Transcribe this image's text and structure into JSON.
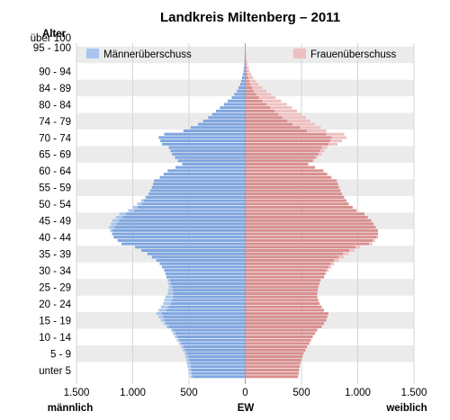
{
  "chart_data": {
    "type": "bar",
    "orientation": "horizontal-mirrored",
    "title": "Landkreis Miltenberg – 2011",
    "y_axis_label": "Alter",
    "x_axis_center_label": "EW",
    "x_axis_left_label": "männlich",
    "x_axis_right_label": "weiblich",
    "xlim": [
      -1500,
      1500
    ],
    "x_tick_labels": [
      "1.500",
      "1.000",
      "500",
      "0",
      "500",
      "1.000",
      "1.500"
    ],
    "x_tick_values": [
      -1500,
      -1000,
      -500,
      0,
      500,
      1000,
      1500
    ],
    "age_tick_labels": [
      "unter 5",
      "5 - 9",
      "10 - 14",
      "15 - 19",
      "20 - 24",
      "25 - 29",
      "30 - 34",
      "35 - 39",
      "40 - 44",
      "45 - 49",
      "50 - 54",
      "55 - 59",
      "60 - 64",
      "65 - 69",
      "70 - 74",
      "74 - 79",
      "80 - 84",
      "84 - 89",
      "90 - 94",
      "95 - 100",
      "über 100"
    ],
    "legend": [
      {
        "label": "Männerüberschuss",
        "color": "#a9c5ee",
        "position": "top-left"
      },
      {
        "label": "Frauenüberschuss",
        "color": "#efc0c0",
        "position": "top-right"
      }
    ],
    "colors": {
      "male": "#7fa6e0",
      "female": "#d98f8f",
      "male_excess": "#a9c5ee",
      "female_excess": "#efc0c0",
      "band": "#ebebeb"
    },
    "age_range": [
      0,
      100
    ],
    "male_anchors_by_age": [
      [
        0,
        490
      ],
      [
        2,
        505
      ],
      [
        4,
        520
      ],
      [
        5,
        525
      ],
      [
        7,
        540
      ],
      [
        9,
        570
      ],
      [
        10,
        590
      ],
      [
        12,
        625
      ],
      [
        14,
        660
      ],
      [
        15,
        700
      ],
      [
        17,
        750
      ],
      [
        19,
        790
      ],
      [
        20,
        770
      ],
      [
        22,
        730
      ],
      [
        24,
        710
      ],
      [
        25,
        690
      ],
      [
        27,
        680
      ],
      [
        29,
        690
      ],
      [
        30,
        700
      ],
      [
        32,
        720
      ],
      [
        34,
        760
      ],
      [
        35,
        790
      ],
      [
        37,
        870
      ],
      [
        39,
        980
      ],
      [
        40,
        1100
      ],
      [
        42,
        1170
      ],
      [
        44,
        1200
      ],
      [
        45,
        1210
      ],
      [
        47,
        1180
      ],
      [
        49,
        1120
      ],
      [
        50,
        1040
      ],
      [
        52,
        960
      ],
      [
        54,
        890
      ],
      [
        55,
        860
      ],
      [
        57,
        830
      ],
      [
        59,
        810
      ],
      [
        60,
        760
      ],
      [
        62,
        690
      ],
      [
        63,
        620
      ],
      [
        64,
        560
      ],
      [
        65,
        600
      ],
      [
        67,
        650
      ],
      [
        69,
        680
      ],
      [
        70,
        740
      ],
      [
        72,
        770
      ],
      [
        73,
        720
      ],
      [
        74,
        550
      ],
      [
        76,
        420
      ],
      [
        78,
        330
      ],
      [
        80,
        260
      ],
      [
        82,
        190
      ],
      [
        84,
        120
      ],
      [
        86,
        75
      ],
      [
        88,
        45
      ],
      [
        90,
        28
      ],
      [
        92,
        16
      ],
      [
        94,
        9
      ],
      [
        96,
        5
      ],
      [
        98,
        2
      ],
      [
        100,
        1
      ]
    ],
    "female_anchors_by_age": [
      [
        0,
        470
      ],
      [
        2,
        480
      ],
      [
        4,
        490
      ],
      [
        5,
        500
      ],
      [
        7,
        520
      ],
      [
        9,
        550
      ],
      [
        10,
        570
      ],
      [
        12,
        600
      ],
      [
        14,
        640
      ],
      [
        15,
        680
      ],
      [
        17,
        720
      ],
      [
        19,
        740
      ],
      [
        20,
        700
      ],
      [
        22,
        660
      ],
      [
        24,
        640
      ],
      [
        25,
        640
      ],
      [
        27,
        650
      ],
      [
        29,
        670
      ],
      [
        30,
        700
      ],
      [
        32,
        740
      ],
      [
        34,
        790
      ],
      [
        35,
        830
      ],
      [
        37,
        920
      ],
      [
        39,
        1020
      ],
      [
        40,
        1130
      ],
      [
        42,
        1180
      ],
      [
        44,
        1180
      ],
      [
        45,
        1160
      ],
      [
        47,
        1120
      ],
      [
        49,
        1060
      ],
      [
        50,
        990
      ],
      [
        52,
        920
      ],
      [
        54,
        880
      ],
      [
        55,
        860
      ],
      [
        57,
        840
      ],
      [
        59,
        820
      ],
      [
        60,
        770
      ],
      [
        62,
        700
      ],
      [
        63,
        620
      ],
      [
        64,
        560
      ],
      [
        65,
        610
      ],
      [
        67,
        680
      ],
      [
        69,
        730
      ],
      [
        70,
        820
      ],
      [
        72,
        900
      ],
      [
        73,
        880
      ],
      [
        74,
        720
      ],
      [
        76,
        620
      ],
      [
        78,
        540
      ],
      [
        80,
        460
      ],
      [
        82,
        370
      ],
      [
        84,
        270
      ],
      [
        86,
        190
      ],
      [
        88,
        120
      ],
      [
        90,
        70
      ],
      [
        92,
        40
      ],
      [
        94,
        22
      ],
      [
        96,
        12
      ],
      [
        98,
        5
      ],
      [
        100,
        2
      ]
    ]
  }
}
